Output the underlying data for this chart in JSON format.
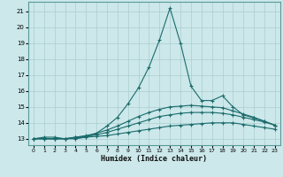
{
  "title": "",
  "xlabel": "Humidex (Indice chaleur)",
  "xlim": [
    -0.5,
    23.5
  ],
  "ylim": [
    12.6,
    21.6
  ],
  "yticks": [
    13,
    14,
    15,
    16,
    17,
    18,
    19,
    20,
    21
  ],
  "xticks": [
    0,
    1,
    2,
    3,
    4,
    5,
    6,
    7,
    8,
    9,
    10,
    11,
    12,
    13,
    14,
    15,
    16,
    17,
    18,
    19,
    20,
    21,
    22,
    23
  ],
  "bg_color": "#cce8ea",
  "line_color": "#1a6b6b",
  "grid_color": "#aacdd0",
  "series": [
    {
      "x": [
        0,
        1,
        2,
        3,
        4,
        5,
        6,
        7,
        8,
        9,
        10,
        11,
        12,
        13,
        14,
        15,
        16,
        17,
        18,
        19,
        20,
        21,
        22,
        23
      ],
      "y": [
        13.0,
        13.0,
        13.0,
        13.0,
        13.05,
        13.1,
        13.15,
        13.2,
        13.3,
        13.4,
        13.5,
        13.6,
        13.7,
        13.8,
        13.85,
        13.9,
        13.95,
        14.0,
        14.0,
        14.0,
        13.9,
        13.8,
        13.7,
        13.6
      ]
    },
    {
      "x": [
        0,
        1,
        2,
        3,
        4,
        5,
        6,
        7,
        8,
        9,
        10,
        11,
        12,
        13,
        14,
        15,
        16,
        17,
        18,
        19,
        20,
        21,
        22,
        23
      ],
      "y": [
        13.0,
        13.0,
        13.0,
        13.0,
        13.1,
        13.15,
        13.25,
        13.4,
        13.6,
        13.8,
        14.0,
        14.2,
        14.4,
        14.5,
        14.6,
        14.65,
        14.65,
        14.65,
        14.6,
        14.5,
        14.35,
        14.2,
        14.05,
        13.85
      ]
    },
    {
      "x": [
        0,
        1,
        2,
        3,
        4,
        5,
        6,
        7,
        8,
        9,
        10,
        11,
        12,
        13,
        14,
        15,
        16,
        17,
        18,
        19,
        20,
        21,
        22,
        23
      ],
      "y": [
        13.0,
        13.0,
        13.0,
        13.0,
        13.1,
        13.2,
        13.35,
        13.55,
        13.8,
        14.1,
        14.4,
        14.65,
        14.85,
        15.0,
        15.05,
        15.1,
        15.05,
        15.0,
        14.95,
        14.75,
        14.55,
        14.35,
        14.1,
        13.85
      ]
    },
    {
      "x": [
        0,
        1,
        2,
        3,
        4,
        5,
        6,
        7,
        8,
        9,
        10,
        11,
        12,
        13,
        14,
        15,
        16,
        17,
        18,
        19,
        20,
        21,
        22,
        23
      ],
      "y": [
        13.0,
        13.1,
        13.1,
        13.0,
        13.0,
        13.1,
        13.35,
        13.8,
        14.35,
        15.2,
        16.2,
        17.5,
        19.2,
        21.2,
        19.0,
        16.3,
        15.4,
        15.4,
        15.7,
        15.0,
        14.5,
        14.3,
        14.1,
        13.85
      ]
    }
  ]
}
